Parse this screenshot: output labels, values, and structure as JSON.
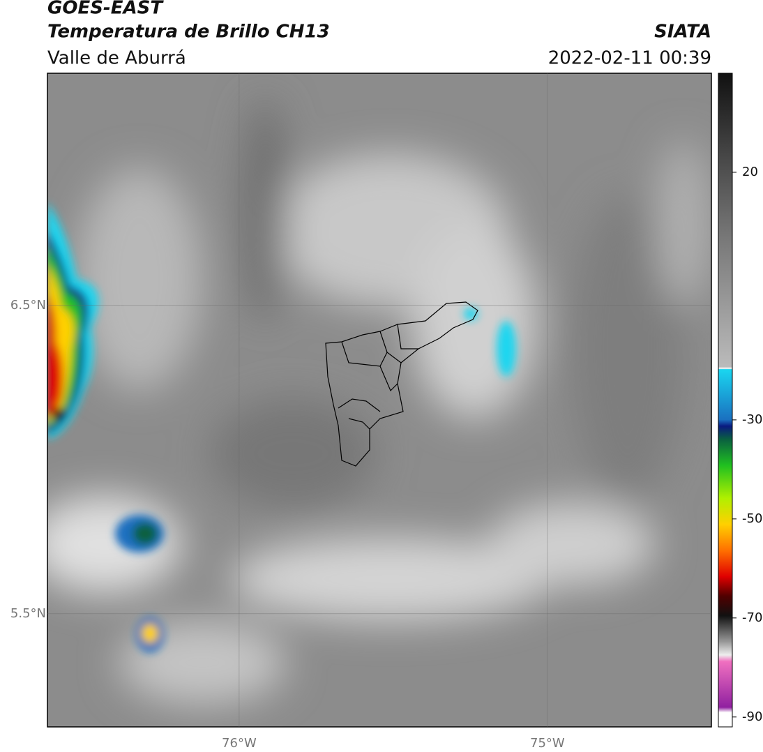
{
  "header": {
    "title": "GOES-EAST",
    "subtitle": "Temperatura de Brillo CH13",
    "region": "Valle de Aburrá",
    "source": "SIATA",
    "datetime": "2022-02-11 00:39"
  },
  "map": {
    "latlim": [
      5.133,
      7.253
    ],
    "lonlim": [
      -76.622,
      -74.468
    ],
    "latticks": [
      {
        "value": 6.5,
        "label": "6.5°N"
      },
      {
        "value": 5.5,
        "label": "5.5°N"
      }
    ],
    "lonticks": [
      {
        "value": -76,
        "label": "76°W"
      },
      {
        "value": -75,
        "label": "75°W"
      }
    ]
  },
  "colorbar": {
    "range": [
      -92,
      40
    ],
    "ticks": [
      20,
      -30,
      -50,
      -70,
      -90
    ]
  }
}
